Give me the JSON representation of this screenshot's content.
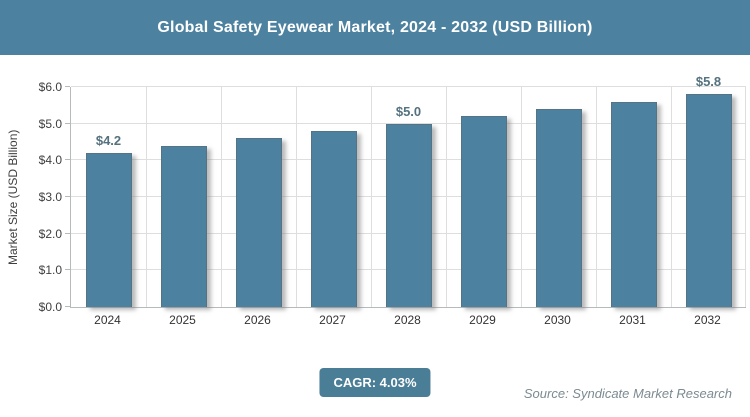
{
  "header": {
    "title": "Global Safety Eyewear Market, 2024 - 2032 (USD Billion)"
  },
  "chart_data": {
    "type": "bar",
    "title": "Global Safety Eyewear Market, 2024 - 2032 (USD Billion)",
    "categories": [
      "2024",
      "2025",
      "2026",
      "2027",
      "2028",
      "2029",
      "2030",
      "2031",
      "2032"
    ],
    "values": [
      4.2,
      4.4,
      4.6,
      4.8,
      5.0,
      5.2,
      5.4,
      5.6,
      5.8
    ],
    "bar_labels": [
      "$4.2",
      "",
      "",
      "",
      "$5.0",
      "",
      "",
      "",
      "$5.8"
    ],
    "xlabel": "",
    "ylabel": "Market Size (USD Billion)",
    "ylim": [
      0,
      6
    ],
    "ytick_labels": [
      "$0.0",
      "$1.0",
      "$2.0",
      "$3.0",
      "$4.0",
      "$5.0",
      "$6.0"
    ],
    "grid": true,
    "legend": "none",
    "bar_color": "#4C82A0"
  },
  "footer": {
    "cagr_label": "CAGR: 4.03%",
    "source": "Source: Syndicate Market Research"
  },
  "colors": {
    "accent": "#4C82A0",
    "badge_bg": "#4A7D96",
    "data_label": "#54717F",
    "axis_text": "#3F3F3F",
    "grid_line": "#DEDEDE",
    "axis_line": "#B5BABD",
    "source_text": "#7C8B91",
    "title_text": "#FFFFFF"
  }
}
